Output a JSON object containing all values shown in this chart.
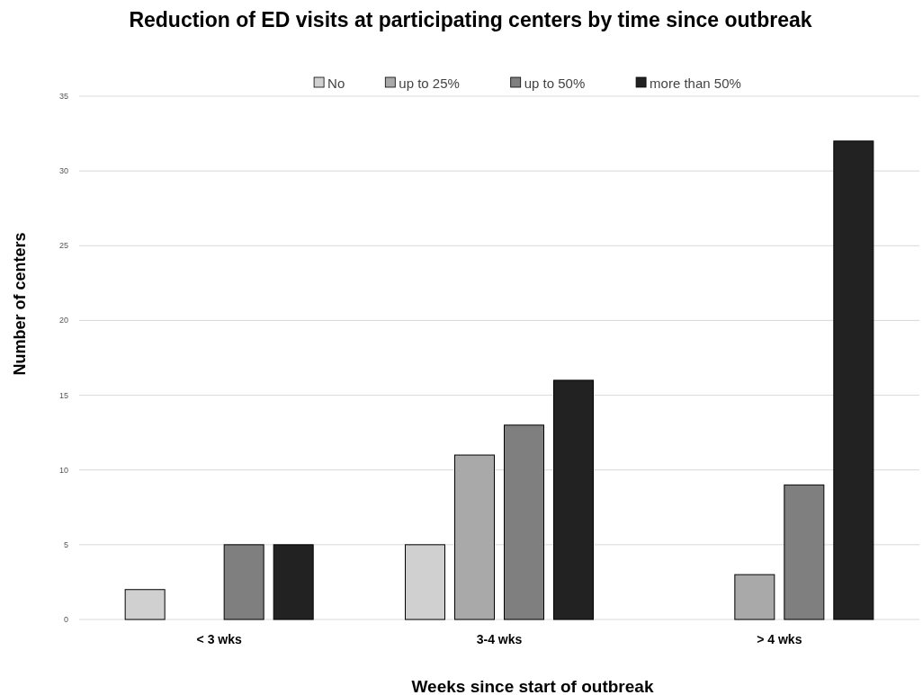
{
  "chart_data": {
    "type": "bar",
    "title": "Reduction of ED visits at participating centers by time since outbreak",
    "xlabel": "Weeks since start of outbreak",
    "ylabel": "Number of centers",
    "categories": [
      "< 3 wks",
      "3-4 wks",
      "> 4 wks"
    ],
    "series": [
      {
        "name": "No",
        "color": "#d0d0d0",
        "values": [
          2,
          5,
          0
        ]
      },
      {
        "name": "up to 25%",
        "color": "#a9a9a9",
        "values": [
          0,
          11,
          3
        ]
      },
      {
        "name": "up to 50%",
        "color": "#7f7f7f",
        "values": [
          5,
          13,
          9
        ]
      },
      {
        "name": "more than 50%",
        "color": "#222222",
        "values": [
          5,
          16,
          32
        ]
      }
    ],
    "ylim": [
      0,
      35
    ],
    "yticks": [
      0,
      5,
      10,
      15,
      20,
      25,
      30,
      35
    ],
    "grid": "y",
    "legend": "top"
  }
}
